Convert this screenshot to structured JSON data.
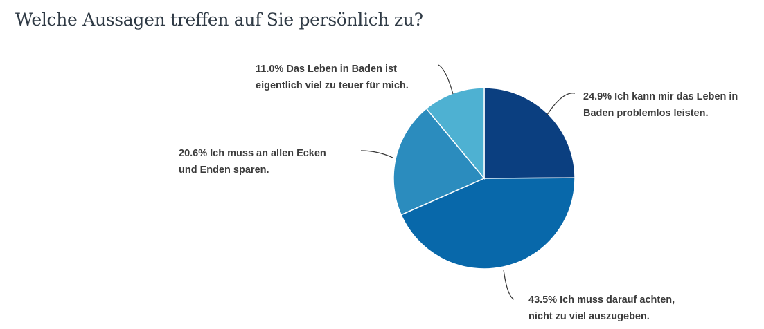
{
  "chart_data": {
    "type": "pie",
    "title": "Welche Aussagen treffen auf Sie persönlich zu?",
    "start_angle": "top, clockwise",
    "slices": [
      {
        "value": 24.9,
        "pct": "24.9%",
        "line1": "Ich kann mir das Leben in",
        "line2": "Baden problemlos leisten.",
        "color": "#0b3f80"
      },
      {
        "value": 43.5,
        "pct": "43.5%",
        "line1": "Ich muss darauf achten,",
        "line2": "nicht zu viel auszugeben.",
        "color": "#0868aa"
      },
      {
        "value": 20.6,
        "pct": "20.6%",
        "line1": "Ich muss an allen Ecken",
        "line2": "und Enden sparen.",
        "color": "#2b8cbe"
      },
      {
        "value": 11.0,
        "pct": "11.0%",
        "line1": "Das Leben in Baden ist",
        "line2": "eigentlich viel zu teuer für mich.",
        "color": "#4eb1d2"
      }
    ]
  }
}
